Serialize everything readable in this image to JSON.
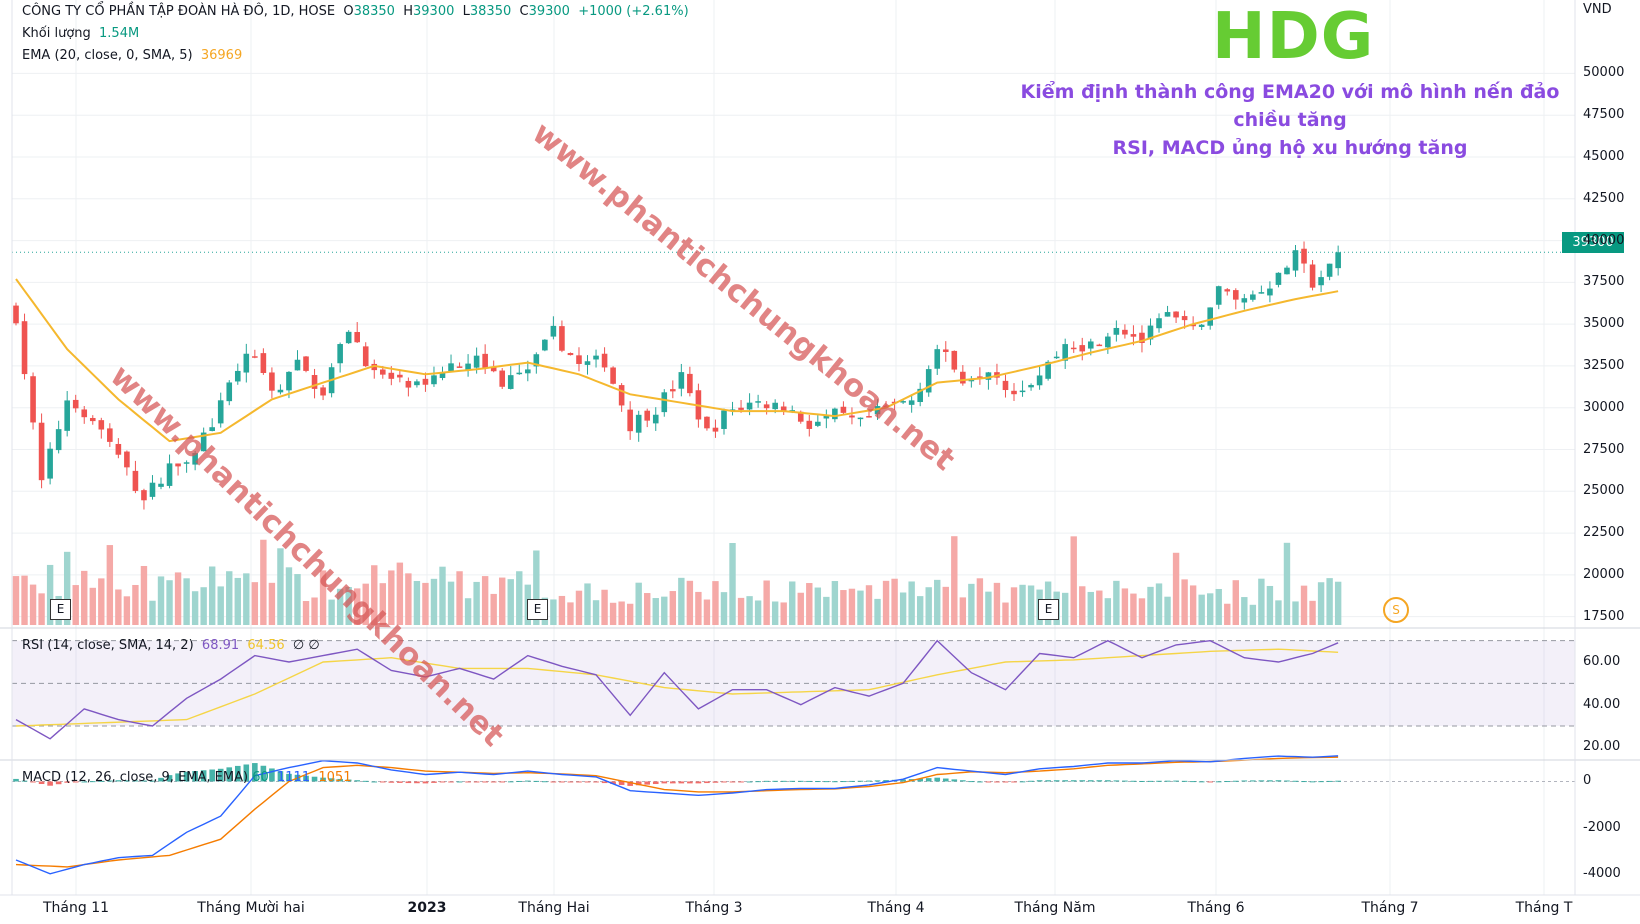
{
  "header": {
    "company_line": "CÔNG TY CỔ PHẦN TẬP ĐOÀN HÀ ĐÔ, 1D, HOSE",
    "o_label": "O",
    "o_value": "38350",
    "h_label": "H",
    "h_value": "39300",
    "l_label": "L",
    "l_value": "38350",
    "c_label": "C",
    "c_value": "39300",
    "change": "+1000 (+2.61%)",
    "volume_label": "Khối lượng",
    "volume_value": "1.54M",
    "ema_label": "EMA (20, close, 0, SMA, 5)",
    "ema_value": "36969"
  },
  "ticker": "HDG",
  "annotation_lines": [
    "Kiểm định thành công EMA20 với mô hình nến đảo",
    "chiều tăng",
    "RSI, MACD ủng hộ xu hướng tăng"
  ],
  "watermark": "www.phantichchungkhoan.net",
  "currency": "VND",
  "last_price_label": "39300",
  "event_marker": "E",
  "dividend_marker": "S",
  "rsi_legend": {
    "label": "RSI (14, close, SMA, 14, 2)",
    "value": "68.91",
    "ma": "64.56",
    "extra": "∅ ∅"
  },
  "macd_legend": {
    "label": "MACD (12, 26, close, 9, EMA, EMA)",
    "hist": "60",
    "macd": "1111",
    "signal": "1051"
  },
  "colors": {
    "up": "#26a69a",
    "down": "#ef5350",
    "vol_up": "#9fd5cf",
    "vol_down": "#f5a9a7",
    "ema": "#f5b82e",
    "rsi": "#7e57c2",
    "rsi_ma": "#f5d547",
    "macd": "#2962ff",
    "signal": "#f57c00",
    "ticker": "#66cc33",
    "annotation": "#8a4be0"
  },
  "chart_data": {
    "type": "candlestick",
    "x_axis_labels": [
      "Tháng 11",
      "Tháng Mười hai",
      "2023",
      "Tháng Hai",
      "Tháng 3",
      "Tháng 4",
      "Tháng Năm",
      "Tháng 6",
      "Tháng 7",
      "Tháng T"
    ],
    "price_axis": {
      "ticks": [
        17500,
        20000,
        22500,
        25000,
        27500,
        30000,
        32500,
        35000,
        37500,
        40000,
        42500,
        45000,
        47500,
        50000
      ],
      "tick_labels": [
        "17500",
        "20000",
        "22500",
        "25000",
        "27500",
        "30000",
        "32500",
        "35000",
        "37500",
        "40000",
        "42500",
        "45000",
        "47500",
        "50000"
      ],
      "range": [
        17000,
        52000
      ]
    },
    "rsi_axis": {
      "ticks": [
        20,
        40,
        60
      ],
      "tick_labels": [
        "20.00",
        "40.00",
        "60.00"
      ],
      "range": [
        15,
        75
      ],
      "bands": [
        30,
        50,
        70
      ]
    },
    "macd_axis": {
      "ticks": [
        -4000,
        -2000,
        0
      ],
      "tick_labels": [
        "-4000",
        "-2000",
        "0"
      ],
      "range": [
        -4700,
        800
      ]
    },
    "last_close": 39300,
    "close_path": [
      [
        0,
        35500
      ],
      [
        3,
        25500
      ],
      [
        6,
        30500
      ],
      [
        9,
        29500
      ],
      [
        12,
        27000
      ],
      [
        15,
        24500
      ],
      [
        18,
        26500
      ],
      [
        21,
        27500
      ],
      [
        24,
        30000
      ],
      [
        27,
        33500
      ],
      [
        30,
        31000
      ],
      [
        33,
        32500
      ],
      [
        36,
        31000
      ],
      [
        39,
        34800
      ],
      [
        42,
        32000
      ],
      [
        45,
        31500
      ],
      [
        48,
        31000
      ],
      [
        51,
        32800
      ],
      [
        54,
        33000
      ],
      [
        57,
        31500
      ],
      [
        60,
        32000
      ],
      [
        63,
        34500
      ],
      [
        66,
        32500
      ],
      [
        69,
        32800
      ],
      [
        72,
        29000
      ],
      [
        75,
        30000
      ],
      [
        78,
        31800
      ],
      [
        81,
        28500
      ],
      [
        84,
        30000
      ],
      [
        87,
        30300
      ],
      [
        90,
        30100
      ],
      [
        93,
        29000
      ],
      [
        96,
        29500
      ],
      [
        99,
        29000
      ],
      [
        102,
        30000
      ],
      [
        105,
        30500
      ],
      [
        108,
        33500
      ],
      [
        111,
        31800
      ],
      [
        114,
        32500
      ],
      [
        117,
        31000
      ],
      [
        120,
        32000
      ],
      [
        123,
        33800
      ],
      [
        126,
        33800
      ],
      [
        129,
        35000
      ],
      [
        132,
        34000
      ],
      [
        135,
        35500
      ],
      [
        138,
        34500
      ],
      [
        141,
        37000
      ],
      [
        144,
        36500
      ],
      [
        147,
        37500
      ],
      [
        150,
        39000
      ],
      [
        152,
        37500
      ],
      [
        154,
        38300
      ],
      [
        155,
        39300
      ]
    ],
    "ema20_path": [
      [
        0,
        37700
      ],
      [
        6,
        33500
      ],
      [
        12,
        30500
      ],
      [
        18,
        28000
      ],
      [
        24,
        28500
      ],
      [
        30,
        30500
      ],
      [
        36,
        31500
      ],
      [
        42,
        32500
      ],
      [
        48,
        32000
      ],
      [
        54,
        32300
      ],
      [
        60,
        32700
      ],
      [
        66,
        32000
      ],
      [
        72,
        30800
      ],
      [
        78,
        30300
      ],
      [
        84,
        29800
      ],
      [
        90,
        29800
      ],
      [
        96,
        29500
      ],
      [
        102,
        30000
      ],
      [
        108,
        31500
      ],
      [
        114,
        31800
      ],
      [
        120,
        32500
      ],
      [
        126,
        33300
      ],
      [
        132,
        34000
      ],
      [
        138,
        35000
      ],
      [
        144,
        35800
      ],
      [
        150,
        36500
      ],
      [
        155,
        36969
      ]
    ],
    "rsi_path": [
      [
        0,
        33
      ],
      [
        4,
        24
      ],
      [
        8,
        38
      ],
      [
        12,
        33
      ],
      [
        16,
        30
      ],
      [
        20,
        43
      ],
      [
        24,
        52
      ],
      [
        28,
        63
      ],
      [
        32,
        60
      ],
      [
        36,
        63
      ],
      [
        40,
        66
      ],
      [
        44,
        56
      ],
      [
        48,
        53
      ],
      [
        52,
        57
      ],
      [
        56,
        52
      ],
      [
        60,
        63
      ],
      [
        64,
        58
      ],
      [
        68,
        54
      ],
      [
        72,
        35
      ],
      [
        76,
        55
      ],
      [
        80,
        38
      ],
      [
        84,
        47
      ],
      [
        88,
        47
      ],
      [
        92,
        40
      ],
      [
        96,
        48
      ],
      [
        100,
        44
      ],
      [
        104,
        50
      ],
      [
        108,
        70
      ],
      [
        112,
        55
      ],
      [
        116,
        47
      ],
      [
        120,
        64
      ],
      [
        124,
        62
      ],
      [
        128,
        70
      ],
      [
        132,
        62
      ],
      [
        136,
        68
      ],
      [
        140,
        70
      ],
      [
        144,
        62
      ],
      [
        148,
        60
      ],
      [
        152,
        64
      ],
      [
        155,
        69
      ]
    ],
    "rsi_ma_path": [
      [
        0,
        30
      ],
      [
        20,
        33
      ],
      [
        28,
        45
      ],
      [
        36,
        60
      ],
      [
        44,
        62
      ],
      [
        52,
        57
      ],
      [
        60,
        57
      ],
      [
        68,
        54
      ],
      [
        76,
        48
      ],
      [
        84,
        45
      ],
      [
        92,
        46
      ],
      [
        100,
        47
      ],
      [
        108,
        54
      ],
      [
        116,
        60
      ],
      [
        124,
        61
      ],
      [
        132,
        63
      ],
      [
        140,
        65
      ],
      [
        148,
        66
      ],
      [
        155,
        64.56
      ]
    ],
    "macd_path": [
      [
        0,
        -3400
      ],
      [
        4,
        -4000
      ],
      [
        8,
        -3600
      ],
      [
        12,
        -3300
      ],
      [
        16,
        -3200
      ],
      [
        20,
        -2200
      ],
      [
        24,
        -1500
      ],
      [
        28,
        250
      ],
      [
        32,
        600
      ],
      [
        36,
        900
      ],
      [
        40,
        800
      ],
      [
        44,
        500
      ],
      [
        48,
        300
      ],
      [
        52,
        400
      ],
      [
        56,
        300
      ],
      [
        60,
        450
      ],
      [
        64,
        300
      ],
      [
        68,
        200
      ],
      [
        72,
        -400
      ],
      [
        76,
        -500
      ],
      [
        80,
        -600
      ],
      [
        84,
        -500
      ],
      [
        88,
        -350
      ],
      [
        92,
        -300
      ],
      [
        96,
        -300
      ],
      [
        100,
        -150
      ],
      [
        104,
        100
      ],
      [
        108,
        600
      ],
      [
        112,
        450
      ],
      [
        116,
        300
      ],
      [
        120,
        550
      ],
      [
        124,
        650
      ],
      [
        128,
        800
      ],
      [
        132,
        800
      ],
      [
        136,
        900
      ],
      [
        140,
        850
      ],
      [
        144,
        1000
      ],
      [
        148,
        1100
      ],
      [
        152,
        1050
      ],
      [
        155,
        1111
      ]
    ],
    "signal_path": [
      [
        0,
        -3600
      ],
      [
        6,
        -3700
      ],
      [
        12,
        -3400
      ],
      [
        18,
        -3200
      ],
      [
        24,
        -2500
      ],
      [
        28,
        -1200
      ],
      [
        32,
        0
      ],
      [
        36,
        600
      ],
      [
        40,
        700
      ],
      [
        44,
        600
      ],
      [
        48,
        450
      ],
      [
        52,
        400
      ],
      [
        56,
        350
      ],
      [
        60,
        380
      ],
      [
        64,
        330
      ],
      [
        68,
        250
      ],
      [
        72,
        -50
      ],
      [
        76,
        -350
      ],
      [
        80,
        -450
      ],
      [
        84,
        -450
      ],
      [
        88,
        -400
      ],
      [
        92,
        -350
      ],
      [
        96,
        -320
      ],
      [
        100,
        -220
      ],
      [
        104,
        -50
      ],
      [
        108,
        300
      ],
      [
        112,
        420
      ],
      [
        116,
        380
      ],
      [
        120,
        450
      ],
      [
        124,
        550
      ],
      [
        128,
        700
      ],
      [
        132,
        760
      ],
      [
        136,
        830
      ],
      [
        140,
        860
      ],
      [
        144,
        920
      ],
      [
        148,
        1000
      ],
      [
        152,
        1040
      ],
      [
        155,
        1051
      ]
    ]
  }
}
